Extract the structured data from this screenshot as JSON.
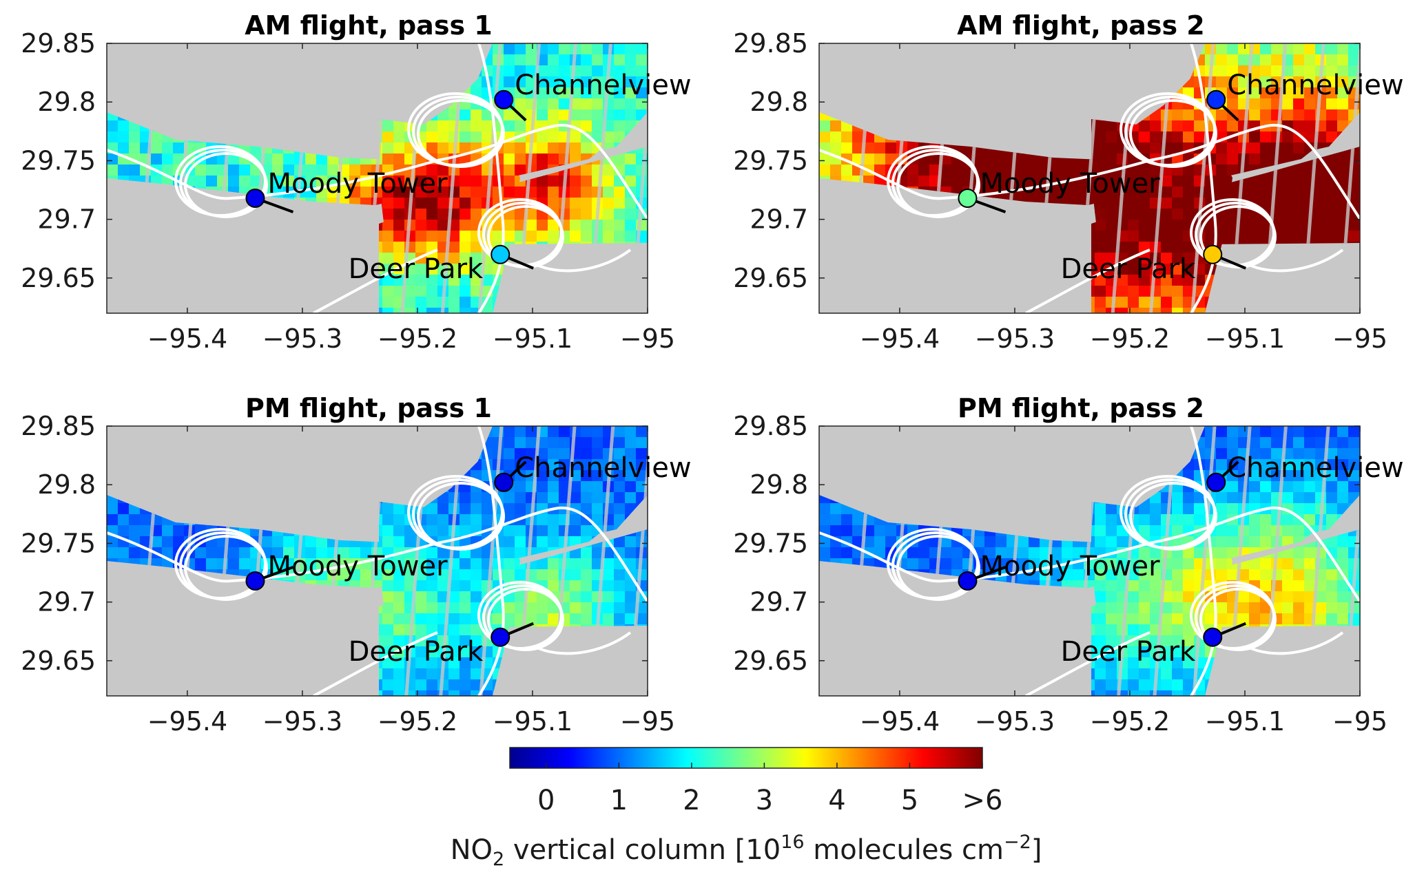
{
  "chart_data": {
    "type": "heatmap",
    "panels": [
      {
        "title": "AM flight, pass 1",
        "id": "am1"
      },
      {
        "title": "AM flight, pass 2",
        "id": "am2"
      },
      {
        "title": "PM flight, pass 1",
        "id": "pm1"
      },
      {
        "title": "PM flight, pass 2",
        "id": "pm2"
      }
    ],
    "xlim": [
      -95.47,
      -95.0
    ],
    "ylim": [
      29.62,
      29.85
    ],
    "xticks": [
      -95.4,
      -95.3,
      -95.2,
      -95.1,
      -95
    ],
    "xtick_labels": [
      "−95.4",
      "−95.3",
      "−95.2",
      "−95.1",
      "−95"
    ],
    "yticks": [
      29.85,
      29.8,
      29.75,
      29.7,
      29.65
    ],
    "ytick_labels": [
      "29.85",
      "29.8",
      "29.75",
      "29.7",
      "29.65"
    ],
    "sites": [
      {
        "name": "Channelview",
        "lon": -95.125,
        "lat": 29.802
      },
      {
        "name": "Moody Tower",
        "lon": -95.341,
        "lat": 29.718
      },
      {
        "name": "Deer Park",
        "lon": -95.128,
        "lat": 29.67
      }
    ],
    "site_values": {
      "am1": [
        0.3,
        0.2,
        1.6
      ],
      "am2": [
        0.6,
        2.6,
        3.9
      ],
      "pm1": [
        0.1,
        0.2,
        0.2
      ],
      "pm2": [
        0.2,
        0.2,
        0.2
      ]
    },
    "colorbar": {
      "range": [
        -0.5,
        6.0
      ],
      "ticks": [
        0,
        1,
        2,
        3,
        4,
        5,
        6
      ],
      "tick_labels": [
        "0",
        "1",
        "2",
        "3",
        "4",
        "5",
        ">6"
      ],
      "label_prefix": "NO",
      "label_sub": "2",
      "label_mid": " vertical column [10",
      "label_sup1": "16",
      "label_mid2": " molecules  cm",
      "label_sup2": "−2",
      "label_end": "]",
      "colormap": "jet"
    }
  }
}
